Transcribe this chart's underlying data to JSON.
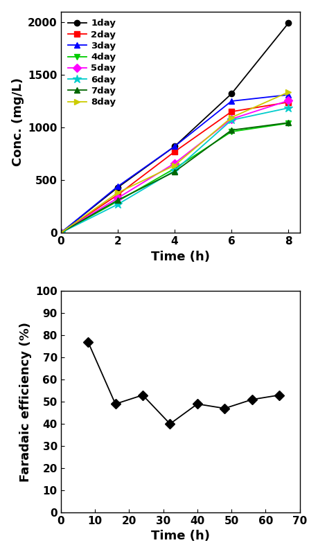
{
  "top_chart": {
    "xlabel": "Time (h)",
    "ylabel": "Conc. (mg/L)",
    "xlim": [
      0,
      8.4
    ],
    "ylim": [
      0,
      2100
    ],
    "xticks": [
      0,
      2,
      4,
      6,
      8
    ],
    "yticks": [
      0,
      500,
      1000,
      1500,
      2000
    ],
    "series": [
      {
        "label": "1day",
        "color": "#000000",
        "marker": "o",
        "linestyle": "-",
        "x": [
          0,
          2,
          4,
          6,
          8
        ],
        "y": [
          0,
          430,
          820,
          1320,
          1990
        ]
      },
      {
        "label": "2day",
        "color": "#ff0000",
        "marker": "s",
        "linestyle": "-",
        "x": [
          0,
          2,
          4,
          6,
          8
        ],
        "y": [
          0,
          360,
          770,
          1150,
          1240
        ]
      },
      {
        "label": "3day",
        "color": "#0000ff",
        "marker": "^",
        "linestyle": "-",
        "x": [
          0,
          2,
          4,
          6,
          8
        ],
        "y": [
          0,
          440,
          820,
          1250,
          1310
        ]
      },
      {
        "label": "4day",
        "color": "#00cc00",
        "marker": "v",
        "linestyle": "-",
        "x": [
          0,
          2,
          4,
          6,
          8
        ],
        "y": [
          0,
          300,
          610,
          960,
          1040
        ]
      },
      {
        "label": "5day",
        "color": "#ff00ff",
        "marker": "D",
        "linestyle": "-",
        "x": [
          0,
          2,
          4,
          6,
          8
        ],
        "y": [
          0,
          330,
          660,
          1080,
          1255
        ]
      },
      {
        "label": "6day",
        "color": "#00cccc",
        "marker": "*",
        "linestyle": "-",
        "x": [
          0,
          2,
          4,
          6,
          8
        ],
        "y": [
          0,
          270,
          590,
          1070,
          1185
        ]
      },
      {
        "label": "7day",
        "color": "#006600",
        "marker": "^",
        "linestyle": "-",
        "x": [
          0,
          2,
          4,
          6,
          8
        ],
        "y": [
          0,
          310,
          580,
          975,
          1045
        ]
      },
      {
        "label": "8day",
        "color": "#cccc00",
        "marker": ">",
        "linestyle": "-",
        "x": [
          0,
          2,
          4,
          6,
          8
        ],
        "y": [
          0,
          380,
          640,
          1095,
          1335
        ]
      }
    ],
    "legend_loc": "upper left",
    "legend_fontsize": 9.5,
    "xlabel_fontsize": 13,
    "ylabel_fontsize": 13,
    "tick_labelsize": 11
  },
  "bottom_chart": {
    "xlabel": "Time (h)",
    "ylabel": "Faradaic efficiency (%)",
    "xlim": [
      0,
      70
    ],
    "ylim": [
      0,
      100
    ],
    "xticks": [
      0,
      10,
      20,
      30,
      40,
      50,
      60,
      70
    ],
    "yticks": [
      0,
      10,
      20,
      30,
      40,
      50,
      60,
      70,
      80,
      90,
      100
    ],
    "x": [
      8,
      16,
      24,
      32,
      40,
      48,
      56,
      64
    ],
    "y": [
      77,
      49,
      53,
      40,
      49,
      47,
      51,
      53
    ],
    "color": "#000000",
    "marker": "D",
    "linestyle": "-",
    "xlabel_fontsize": 13,
    "ylabel_fontsize": 13,
    "tick_labelsize": 11
  },
  "figsize": [
    4.6,
    8.0
  ],
  "dpi": 100
}
